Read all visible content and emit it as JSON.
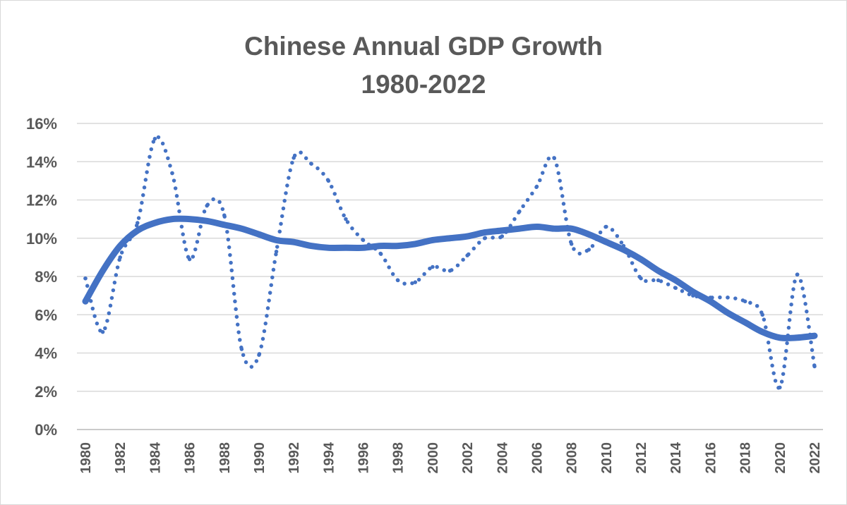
{
  "chart_data": {
    "type": "line",
    "title": "Chinese Annual GDP Growth",
    "subtitle": "1980-2022",
    "xlabel": "",
    "ylabel": "",
    "xlim": [
      1980,
      2022
    ],
    "ylim": [
      0,
      16
    ],
    "y_tick_values": [
      0,
      2,
      4,
      6,
      8,
      10,
      12,
      14,
      16
    ],
    "y_tick_labels": [
      "0%",
      "2%",
      "4%",
      "6%",
      "8%",
      "10%",
      "12%",
      "14%",
      "16%"
    ],
    "x_tick_labels": [
      "1980",
      "1982",
      "1984",
      "1986",
      "1988",
      "1990",
      "1992",
      "1994",
      "1996",
      "1998",
      "2000",
      "2002",
      "2004",
      "2006",
      "2008",
      "2010",
      "2012",
      "2014",
      "2016",
      "2018",
      "2020",
      "2022"
    ],
    "grid": true,
    "legend": "none",
    "series": [
      {
        "style": "dotted",
        "color": "#4472c4",
        "x": [
          1980,
          1981,
          1982,
          1983,
          1984,
          1985,
          1986,
          1987,
          1988,
          1989,
          1990,
          1991,
          1992,
          1993,
          1994,
          1995,
          1996,
          1997,
          1998,
          1999,
          2000,
          2001,
          2002,
          2003,
          2004,
          2005,
          2006,
          2007,
          2008,
          2009,
          2010,
          2011,
          2012,
          2013,
          2014,
          2015,
          2016,
          2017,
          2018,
          2019,
          2020,
          2021,
          2022
        ],
        "values": [
          7.9,
          5.1,
          9.0,
          10.8,
          15.2,
          13.4,
          8.9,
          11.7,
          11.2,
          4.2,
          3.9,
          9.3,
          14.2,
          13.9,
          13.0,
          11.0,
          9.9,
          9.2,
          7.8,
          7.7,
          8.5,
          8.3,
          9.1,
          10.0,
          10.1,
          11.4,
          12.7,
          14.2,
          9.7,
          9.4,
          10.6,
          9.6,
          7.9,
          7.8,
          7.4,
          7.0,
          6.9,
          6.9,
          6.7,
          6.0,
          2.2,
          8.1,
          3.3
        ]
      },
      {
        "style": "solid",
        "color": "#4472c4",
        "x": [
          1980,
          1981,
          1982,
          1983,
          1984,
          1985,
          1986,
          1987,
          1988,
          1989,
          1990,
          1991,
          1992,
          1993,
          1994,
          1995,
          1996,
          1997,
          1998,
          1999,
          2000,
          2001,
          2002,
          2003,
          2004,
          2005,
          2006,
          2007,
          2008,
          2009,
          2010,
          2011,
          2012,
          2013,
          2014,
          2015,
          2016,
          2017,
          2018,
          2019,
          2020,
          2021,
          2022
        ],
        "values": [
          6.7,
          8.3,
          9.6,
          10.4,
          10.8,
          11.0,
          11.0,
          10.9,
          10.7,
          10.5,
          10.2,
          9.9,
          9.8,
          9.6,
          9.5,
          9.5,
          9.5,
          9.6,
          9.6,
          9.7,
          9.9,
          10.0,
          10.1,
          10.3,
          10.4,
          10.5,
          10.6,
          10.5,
          10.5,
          10.2,
          9.8,
          9.4,
          8.9,
          8.3,
          7.8,
          7.2,
          6.7,
          6.1,
          5.6,
          5.1,
          4.8,
          4.8,
          4.9
        ]
      }
    ]
  }
}
